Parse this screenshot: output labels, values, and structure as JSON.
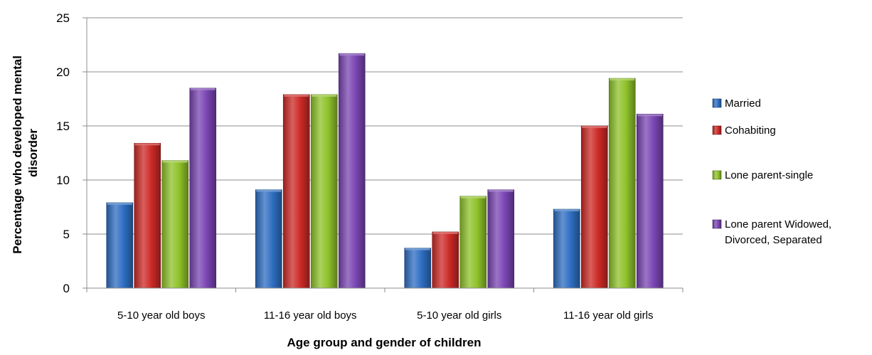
{
  "chart_data": {
    "type": "bar",
    "title": "",
    "xlabel": "Age group and gender of children",
    "ylabel_lines": [
      "Percentage who developed mental",
      "disorder"
    ],
    "ylim": [
      0,
      25
    ],
    "yticks": [
      0,
      5,
      10,
      15,
      20,
      25
    ],
    "grid": true,
    "legend_position": "right",
    "categories": [
      "5-10 year old boys",
      "11-16 year old boys",
      "5-10 year old girls",
      "11-16 year old girls"
    ],
    "series": [
      {
        "name": "Married",
        "color": "#2e6ec2",
        "values": [
          7.9,
          9.1,
          3.7,
          7.3
        ]
      },
      {
        "name": "Cohabiting",
        "color": "#cc2a27",
        "values": [
          13.4,
          17.9,
          5.2,
          15.0
        ]
      },
      {
        "name": "Lone parent-single",
        "color": "#8fc22a",
        "values": [
          11.8,
          17.9,
          8.5,
          19.4
        ]
      },
      {
        "name": "Lone parent Widowed, Divorced, Separated",
        "name_lines": [
          "Lone parent Widowed,",
          "Divorced, Separated"
        ],
        "color": "#7a45b3",
        "values": [
          18.5,
          21.7,
          9.1,
          16.1
        ]
      }
    ]
  }
}
